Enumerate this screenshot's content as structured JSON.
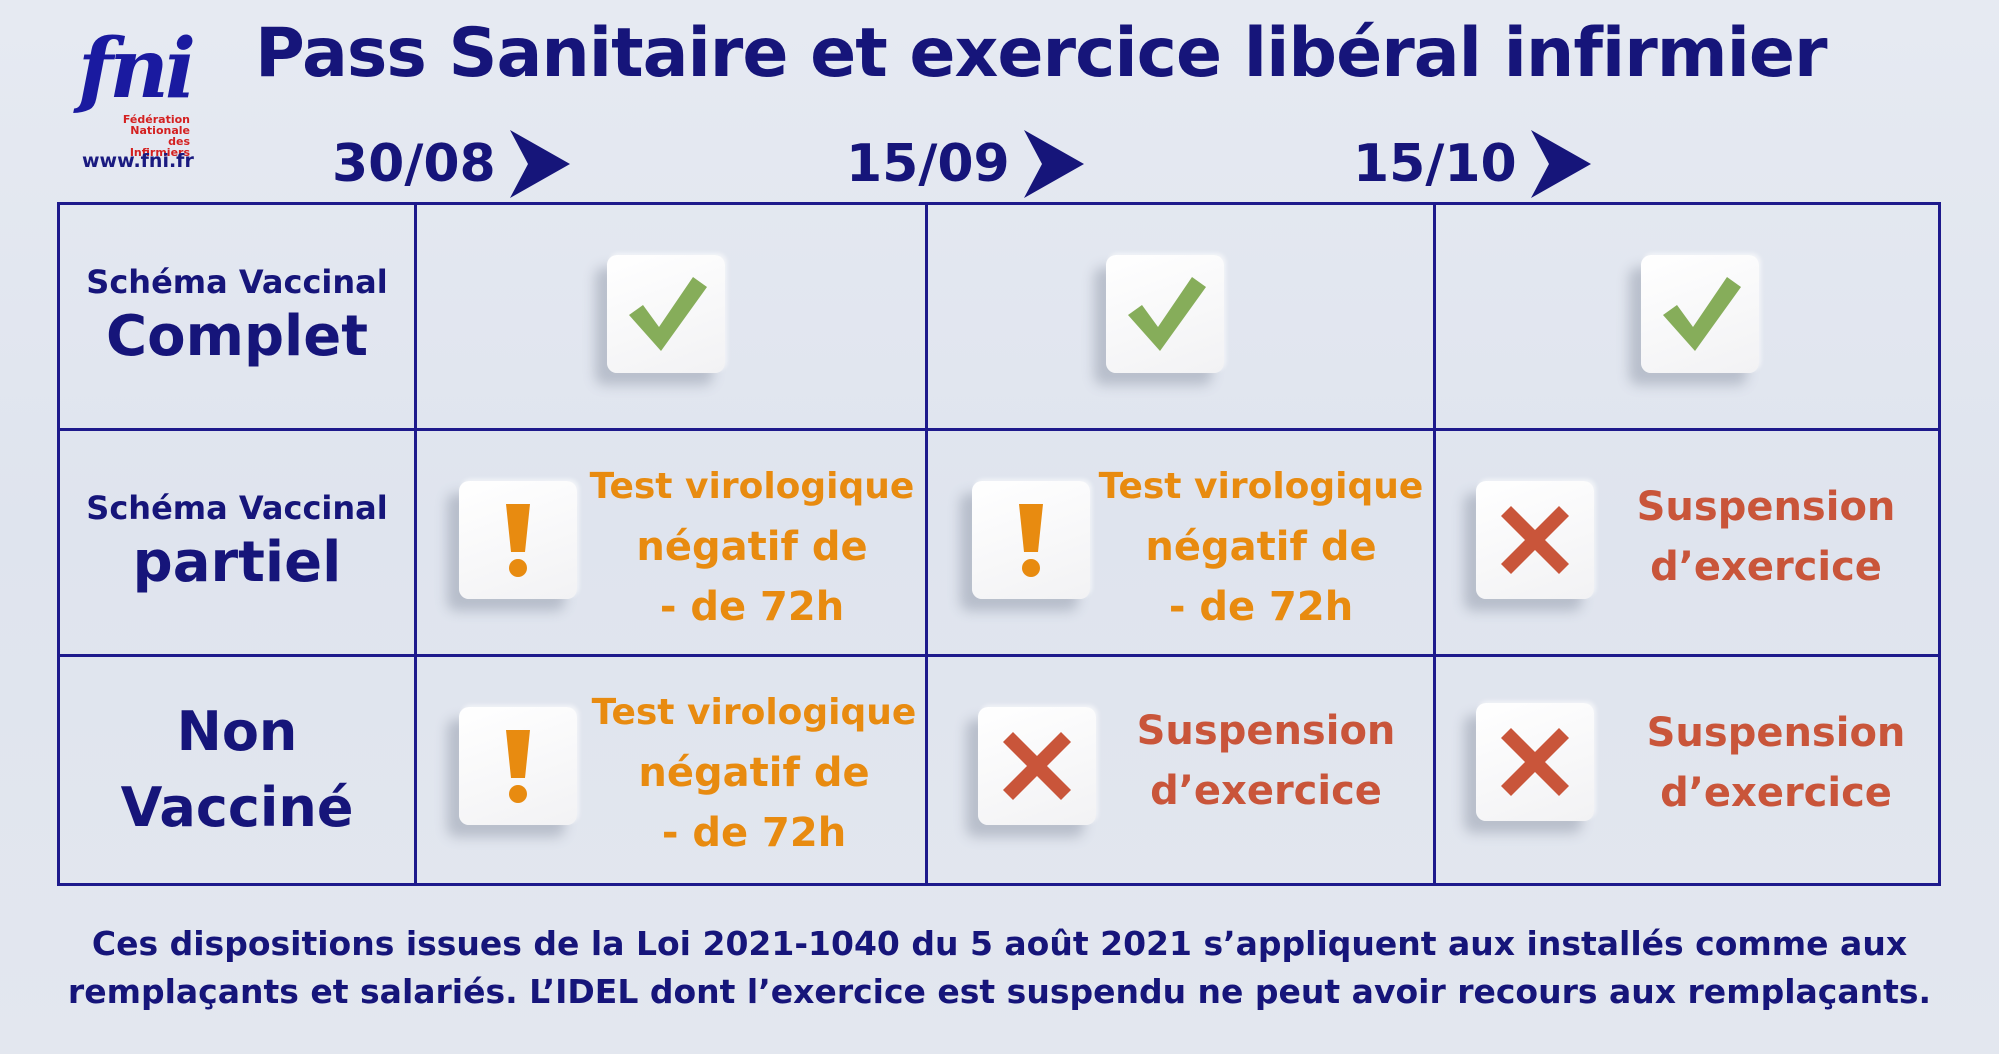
{
  "logo": {
    "brand": "fni",
    "sub_lines": [
      "Fédération",
      "Nationale",
      "des Infirmiers"
    ],
    "url": "www.fni.fr"
  },
  "title": "Pass Sanitaire et exercice libéral infirmier",
  "dates": [
    "30/08",
    "15/09",
    "15/10"
  ],
  "rows": [
    {
      "label_small": "Schéma Vaccinal",
      "label_big": "Complet",
      "cells": [
        {
          "icon": "check-icon"
        },
        {
          "icon": "check-icon"
        },
        {
          "icon": "check-icon"
        }
      ]
    },
    {
      "label_small": "Schéma Vaccinal",
      "label_big": "partiel",
      "cells": [
        {
          "icon": "exclamation-icon",
          "lines": [
            "Test virologique",
            "négatif de",
            "- de 72h"
          ]
        },
        {
          "icon": "exclamation-icon",
          "lines": [
            "Test virologique",
            "négatif de",
            "- de 72h"
          ]
        },
        {
          "icon": "cross-icon",
          "lines": [
            "Suspension",
            "d’exercice"
          ]
        }
      ]
    },
    {
      "label_lines": [
        "Non",
        "Vacciné"
      ],
      "cells": [
        {
          "icon": "exclamation-icon",
          "lines": [
            "Test virologique",
            "négatif de",
            "- de 72h"
          ]
        },
        {
          "icon": "cross-icon",
          "lines": [
            "Suspension",
            "d’exercice"
          ]
        },
        {
          "icon": "cross-icon",
          "lines": [
            "Suspension",
            "d’exercice"
          ]
        }
      ]
    }
  ],
  "footer": [
    "Ces dispositions issues de la Loi 2021-1040 du 5 août 2021 s’appliquent aux installés comme aux",
    "remplaçants et salariés. L’IDEL dont l’exercice est suspendu ne peut avoir recours aux remplaçants."
  ],
  "colors": {
    "navy": "#16157a",
    "check_green": "#86ad5a",
    "warning_orange": "#e88b10",
    "stop_red": "#c9553a"
  }
}
